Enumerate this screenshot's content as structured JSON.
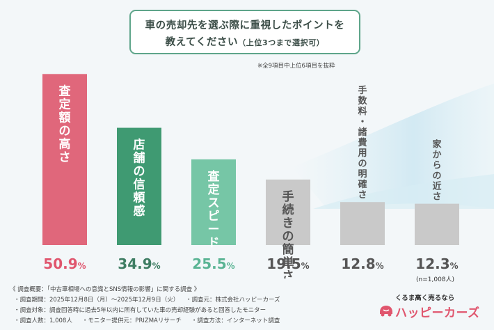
{
  "question": {
    "line1": "車の売却先を選ぶ際に重視したポイントを",
    "line2_main": "教えてください",
    "line2_sub": "（上位3つまで選択可）"
  },
  "note": "※全9項目中上位6項目を抜粋",
  "sample_label": "(n=1,008人)",
  "colors": {
    "pink": "#e0677b",
    "green_dark": "#3f9a72",
    "green_light": "#76c6a6",
    "gray": "#c9c9c9",
    "pct_pink": "#e0566e",
    "pct_dark": "#3e7d63",
    "pct_light": "#5ab494",
    "pct_gray": "#555555"
  },
  "chart_data": {
    "type": "bar",
    "categories": [
      "査定額の高さ",
      "店舗の信頼感",
      "査定スピード",
      "手続きの簡単さ",
      "手数料・諸費用の明確さ",
      "家からの近さ"
    ],
    "values": [
      50.9,
      34.9,
      25.5,
      19.5,
      12.8,
      12.3
    ],
    "value_labels": [
      "50.9%",
      "34.9%",
      "25.5%",
      "19.5%",
      "12.8%",
      "12.3%"
    ],
    "bar_colors": [
      "#e0677b",
      "#3f9a72",
      "#76c6a6",
      "#c9c9c9",
      "#c9c9c9",
      "#c9c9c9"
    ],
    "label_colors": [
      "#ffffff",
      "#ffffff",
      "#ffffff",
      "#555555",
      "#555555",
      "#555555"
    ],
    "label_positions": [
      "inside",
      "inside",
      "inside",
      "inside",
      "above",
      "above"
    ],
    "pct_colors": [
      "#e0566e",
      "#3e7d63",
      "#5ab494",
      "#555555",
      "#555555",
      "#555555"
    ],
    "ylim": [
      0,
      52
    ],
    "title": "",
    "xlabel": "",
    "ylabel": "",
    "grid": false,
    "legend": "none"
  },
  "footer": {
    "title": "《 調査概要：「中古車相場への意識とSNS情報の影響」に関する調査 》",
    "line1a": "・調査期間：2025年12月8日（月）～2025年12月9日（火）",
    "line1b": "・調査元：株式会社ハッピーカーズ",
    "line2": "・調査対象：調査回答時に過去5年以内に所有していた車の売却経験があると回答したモニター",
    "line3a": "・調査人数：1,008人",
    "line3b": "・モニター提供元：PRIZMAリサーチ",
    "line3c": "・調査方法：インターネット調査"
  },
  "logo": {
    "tagline": "くるま高く売るなら",
    "name": "ハッピーカーズ"
  }
}
